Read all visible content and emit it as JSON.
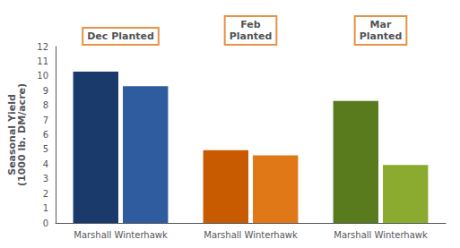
{
  "chart_data": {
    "type": "bar",
    "ylabel": "Seasonal Yield\n(1000 lb. DM/acre)",
    "categories": [
      "Marshall Winterhawk",
      "Marshall Winterhawk",
      "Marshall Winterhawk"
    ],
    "series": [
      {
        "values": [
          10.3,
          4.95,
          8.3
        ],
        "colors": [
          "#1a3a6b",
          "#c85a00",
          "#5a7a1e"
        ]
      },
      {
        "values": [
          9.3,
          4.6,
          3.95
        ],
        "colors": [
          "#2e5c9e",
          "#e07818",
          "#8aab30"
        ]
      }
    ],
    "annotations": [
      {
        "text": "Dec Planted",
        "y": 12,
        "color": "#e07818"
      },
      {
        "text": "Feb\nPlanted",
        "y": 12,
        "color": "#e07818"
      },
      {
        "text": "Mar\nPlanted",
        "y": 12,
        "color": "#e07818"
      }
    ],
    "ylim": [
      0,
      12
    ],
    "yticks": [
      0,
      1,
      2,
      3,
      4,
      5,
      6,
      7,
      8,
      9,
      10,
      11,
      12
    ],
    "grid": false
  }
}
